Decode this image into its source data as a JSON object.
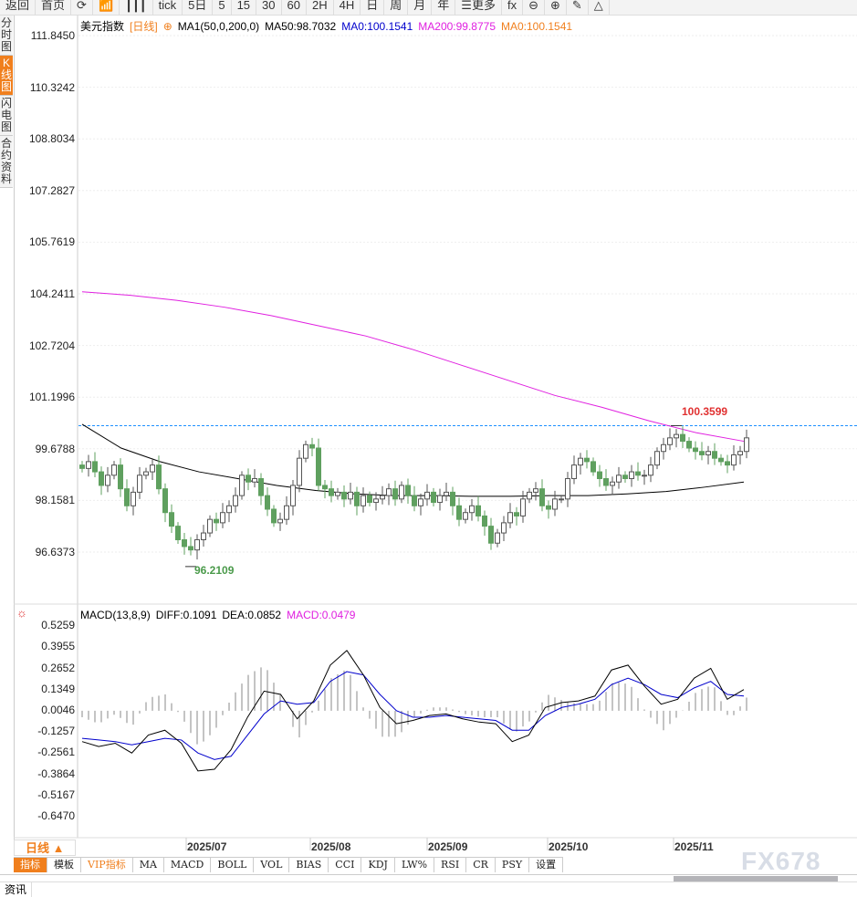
{
  "toolbar": {
    "items": [
      {
        "label": "返回",
        "icon": "back-arrow-icon"
      },
      {
        "label": "首页",
        "icon": "home-icon"
      },
      {
        "label": "⟳",
        "icon": "refresh-icon"
      },
      {
        "label": "📶",
        "icon": "bar-chart-icon"
      },
      {
        "label": "┃┃┃",
        "icon": "candlestick-icon"
      },
      {
        "label": "tick"
      },
      {
        "label": "5日"
      },
      {
        "label": "5"
      },
      {
        "label": "15"
      },
      {
        "label": "30"
      },
      {
        "label": "60"
      },
      {
        "label": "2H"
      },
      {
        "label": "4H"
      },
      {
        "label": "日"
      },
      {
        "label": "周"
      },
      {
        "label": "月"
      },
      {
        "label": "年"
      },
      {
        "label": "☰更多",
        "icon": "menu-icon"
      },
      {
        "label": "fx",
        "icon": "function-icon"
      },
      {
        "label": "⊖",
        "icon": "zoom-out-icon"
      },
      {
        "label": "⊕",
        "icon": "zoom-in-icon"
      },
      {
        "label": "✎",
        "icon": "pencil-icon"
      },
      {
        "label": "△",
        "icon": "triangle-icon"
      }
    ]
  },
  "sidebar": {
    "tabs": [
      "分时图",
      "K线图",
      "闪电图",
      "合约资料"
    ],
    "active": 1
  },
  "legend": {
    "name": "美元指数",
    "period": "[日线]",
    "indicator": "MA1(50,0,200,0)",
    "ma50": "MA50:98.7032",
    "ma0": "MA0:100.1541",
    "ma200": "MA200:99.8775",
    "ma0b": "MA0:100.1541"
  },
  "macd_legend": {
    "name": "MACD(13,8,9)",
    "diff": "DIFF:0.1091",
    "dea": "DEA:0.0852",
    "macd": "MACD:0.0479"
  },
  "colors": {
    "accent": "#f07f1d",
    "ma50": "#000000",
    "ma200": "#e020e0",
    "diff": "#000000",
    "dea": "#0000cc",
    "down": "#5fa05f",
    "high_label": "#e03030",
    "low_label": "#4a9a4a",
    "ref_line": "#1e90ff"
  },
  "chart_data": [
    {
      "type": "candlestick",
      "ylim": [
        95.5,
        112.3
      ],
      "yticks": [
        "111.8450",
        "110.3242",
        "108.8034",
        "107.2827",
        "105.7619",
        "104.2411",
        "102.7204",
        "101.1996",
        "99.6788",
        "98.1581",
        "96.6373"
      ],
      "xticks": [
        "2025/07",
        "2025/08",
        "2025/09",
        "2025/10",
        "2025/11"
      ],
      "closes": [
        99.1,
        99.3,
        99.0,
        98.6,
        98.9,
        99.2,
        98.5,
        98.0,
        98.4,
        98.9,
        99.0,
        99.2,
        98.5,
        97.8,
        97.4,
        97.0,
        96.8,
        96.7,
        97.0,
        97.2,
        97.6,
        97.5,
        97.8,
        98.0,
        98.3,
        98.9,
        98.7,
        98.8,
        98.3,
        97.9,
        97.5,
        97.6,
        98.0,
        98.6,
        99.4,
        99.8,
        99.7,
        98.6,
        98.5,
        98.3,
        98.4,
        98.2,
        98.4,
        98.0,
        98.3,
        98.1,
        98.2,
        98.3,
        98.5,
        98.2,
        98.6,
        98.3,
        98.0,
        98.2,
        98.4,
        98.1,
        98.3,
        98.4,
        98.0,
        97.6,
        97.8,
        98.0,
        97.7,
        97.4,
        96.9,
        97.2,
        97.5,
        97.8,
        97.7,
        98.2,
        98.4,
        98.5,
        98.0,
        97.9,
        98.2,
        98.2,
        98.8,
        99.2,
        99.4,
        99.3,
        99.0,
        98.8,
        98.6,
        98.7,
        98.9,
        98.8,
        99.0,
        98.9,
        98.9,
        99.2,
        99.6,
        99.8,
        100.0,
        100.1,
        99.9,
        99.7,
        99.6,
        99.5,
        99.6,
        99.4,
        99.3,
        99.2,
        99.5,
        99.6,
        100.0
      ],
      "ma50": [
        100.4,
        99.7,
        99.3,
        99.0,
        98.8,
        98.6,
        98.45,
        98.35,
        98.3,
        98.3,
        98.28,
        98.28,
        98.3,
        98.3,
        98.35,
        98.42,
        98.55,
        98.7
      ],
      "ma200": [
        104.3,
        104.2,
        104.05,
        103.85,
        103.6,
        103.3,
        103.0,
        102.6,
        102.15,
        101.7,
        101.25,
        100.9,
        100.5,
        100.15,
        99.9
      ],
      "high_mark": "100.3599",
      "low_mark": "96.2109",
      "ref_value": 100.3599
    },
    {
      "type": "macd",
      "ylim": [
        -0.7,
        0.58
      ],
      "yticks": [
        "0.5259",
        "0.3955",
        "0.2652",
        "0.1349",
        "0.0046",
        "-0.1257",
        "-0.2561",
        "-0.3864",
        "-0.5167",
        "-0.6470"
      ],
      "diff": [
        -0.19,
        -0.22,
        -0.2,
        -0.26,
        -0.15,
        -0.12,
        -0.2,
        -0.37,
        -0.36,
        -0.24,
        -0.04,
        0.12,
        0.1,
        -0.05,
        0.06,
        0.28,
        0.37,
        0.22,
        0.02,
        -0.08,
        -0.06,
        -0.03,
        -0.02,
        -0.05,
        -0.07,
        -0.08,
        -0.19,
        -0.15,
        0.02,
        0.05,
        0.06,
        0.09,
        0.25,
        0.28,
        0.15,
        0.04,
        0.07,
        0.2,
        0.26,
        0.07,
        0.13
      ],
      "dea": [
        -0.17,
        -0.18,
        -0.19,
        -0.21,
        -0.19,
        -0.17,
        -0.18,
        -0.26,
        -0.3,
        -0.28,
        -0.15,
        -0.02,
        0.06,
        0.04,
        0.05,
        0.18,
        0.24,
        0.22,
        0.1,
        0.0,
        -0.04,
        -0.04,
        -0.03,
        -0.04,
        -0.05,
        -0.06,
        -0.12,
        -0.12,
        -0.03,
        0.02,
        0.04,
        0.07,
        0.16,
        0.2,
        0.16,
        0.1,
        0.08,
        0.14,
        0.18,
        0.1,
        0.09
      ]
    }
  ],
  "bottom": {
    "period_button": "日线 ▲",
    "tabs": [
      "指标",
      "模板",
      "VIP指标",
      "MA",
      "MACD",
      "BOLL",
      "VOL",
      "BIAS",
      "CCI",
      "KDJ",
      "LW%",
      "RSI",
      "CR",
      "PSY",
      "设置"
    ],
    "news_tab": "资讯",
    "watermark": "FX678"
  }
}
